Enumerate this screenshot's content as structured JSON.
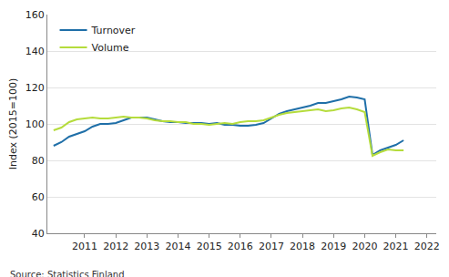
{
  "chart_data": {
    "type": "line",
    "y_label": "Index (2015=100)",
    "annotations": [
      "Source: Statistics Finland"
    ],
    "x": [
      2010.0,
      2010.25,
      2010.5,
      2010.75,
      2011.0,
      2011.25,
      2011.5,
      2011.75,
      2012.0,
      2012.25,
      2012.5,
      2012.75,
      2013.0,
      2013.25,
      2013.5,
      2013.75,
      2014.0,
      2014.25,
      2014.5,
      2014.75,
      2015.0,
      2015.25,
      2015.5,
      2015.75,
      2016.0,
      2016.25,
      2016.5,
      2016.75,
      2017.0,
      2017.25,
      2017.5,
      2017.75,
      2018.0,
      2018.25,
      2018.5,
      2018.75,
      2019.0,
      2019.25,
      2019.5,
      2019.75,
      2020.0,
      2020.25,
      2020.5,
      2020.75,
      2021.0,
      2021.25
    ],
    "series": [
      {
        "name": "Turnover",
        "color": "#1f6fa8",
        "values": [
          88,
          90,
          93,
          94.5,
          96,
          98.5,
          100,
          100,
          100.5,
          102,
          103.5,
          103.5,
          103.5,
          102.5,
          101.5,
          101,
          101,
          100.5,
          100.5,
          100.5,
          100,
          100.5,
          99.5,
          99.5,
          99,
          99,
          99.5,
          100.5,
          103,
          105.5,
          107,
          108,
          109,
          110,
          111.5,
          111.5,
          112.5,
          113.5,
          115,
          114.5,
          113.5,
          83,
          85.5,
          87,
          88.5,
          91
        ]
      },
      {
        "name": "Volume",
        "color": "#b5dc3c",
        "values": [
          96.5,
          98,
          101,
          102.5,
          103,
          103.5,
          103,
          103,
          103.5,
          104,
          103.5,
          103.5,
          103,
          102,
          101.5,
          101.5,
          101,
          101,
          100,
          100,
          99.5,
          100,
          100.5,
          100,
          101,
          101.5,
          101.5,
          102,
          103.5,
          105,
          106,
          106.5,
          107,
          107.5,
          108,
          107,
          107.5,
          108.5,
          109,
          108,
          106.5,
          82.5,
          84.5,
          86,
          85.5,
          85.5
        ]
      }
    ],
    "xlim": [
      2009.8,
      2022.3
    ],
    "xticks": [
      2011,
      2012,
      2013,
      2014,
      2015,
      2016,
      2017,
      2018,
      2019,
      2020,
      2021,
      2022
    ],
    "ylim": [
      40,
      160
    ],
    "yticks": [
      40,
      60,
      80,
      100,
      120,
      140,
      160
    ],
    "grid": true,
    "legend": "upper left"
  }
}
